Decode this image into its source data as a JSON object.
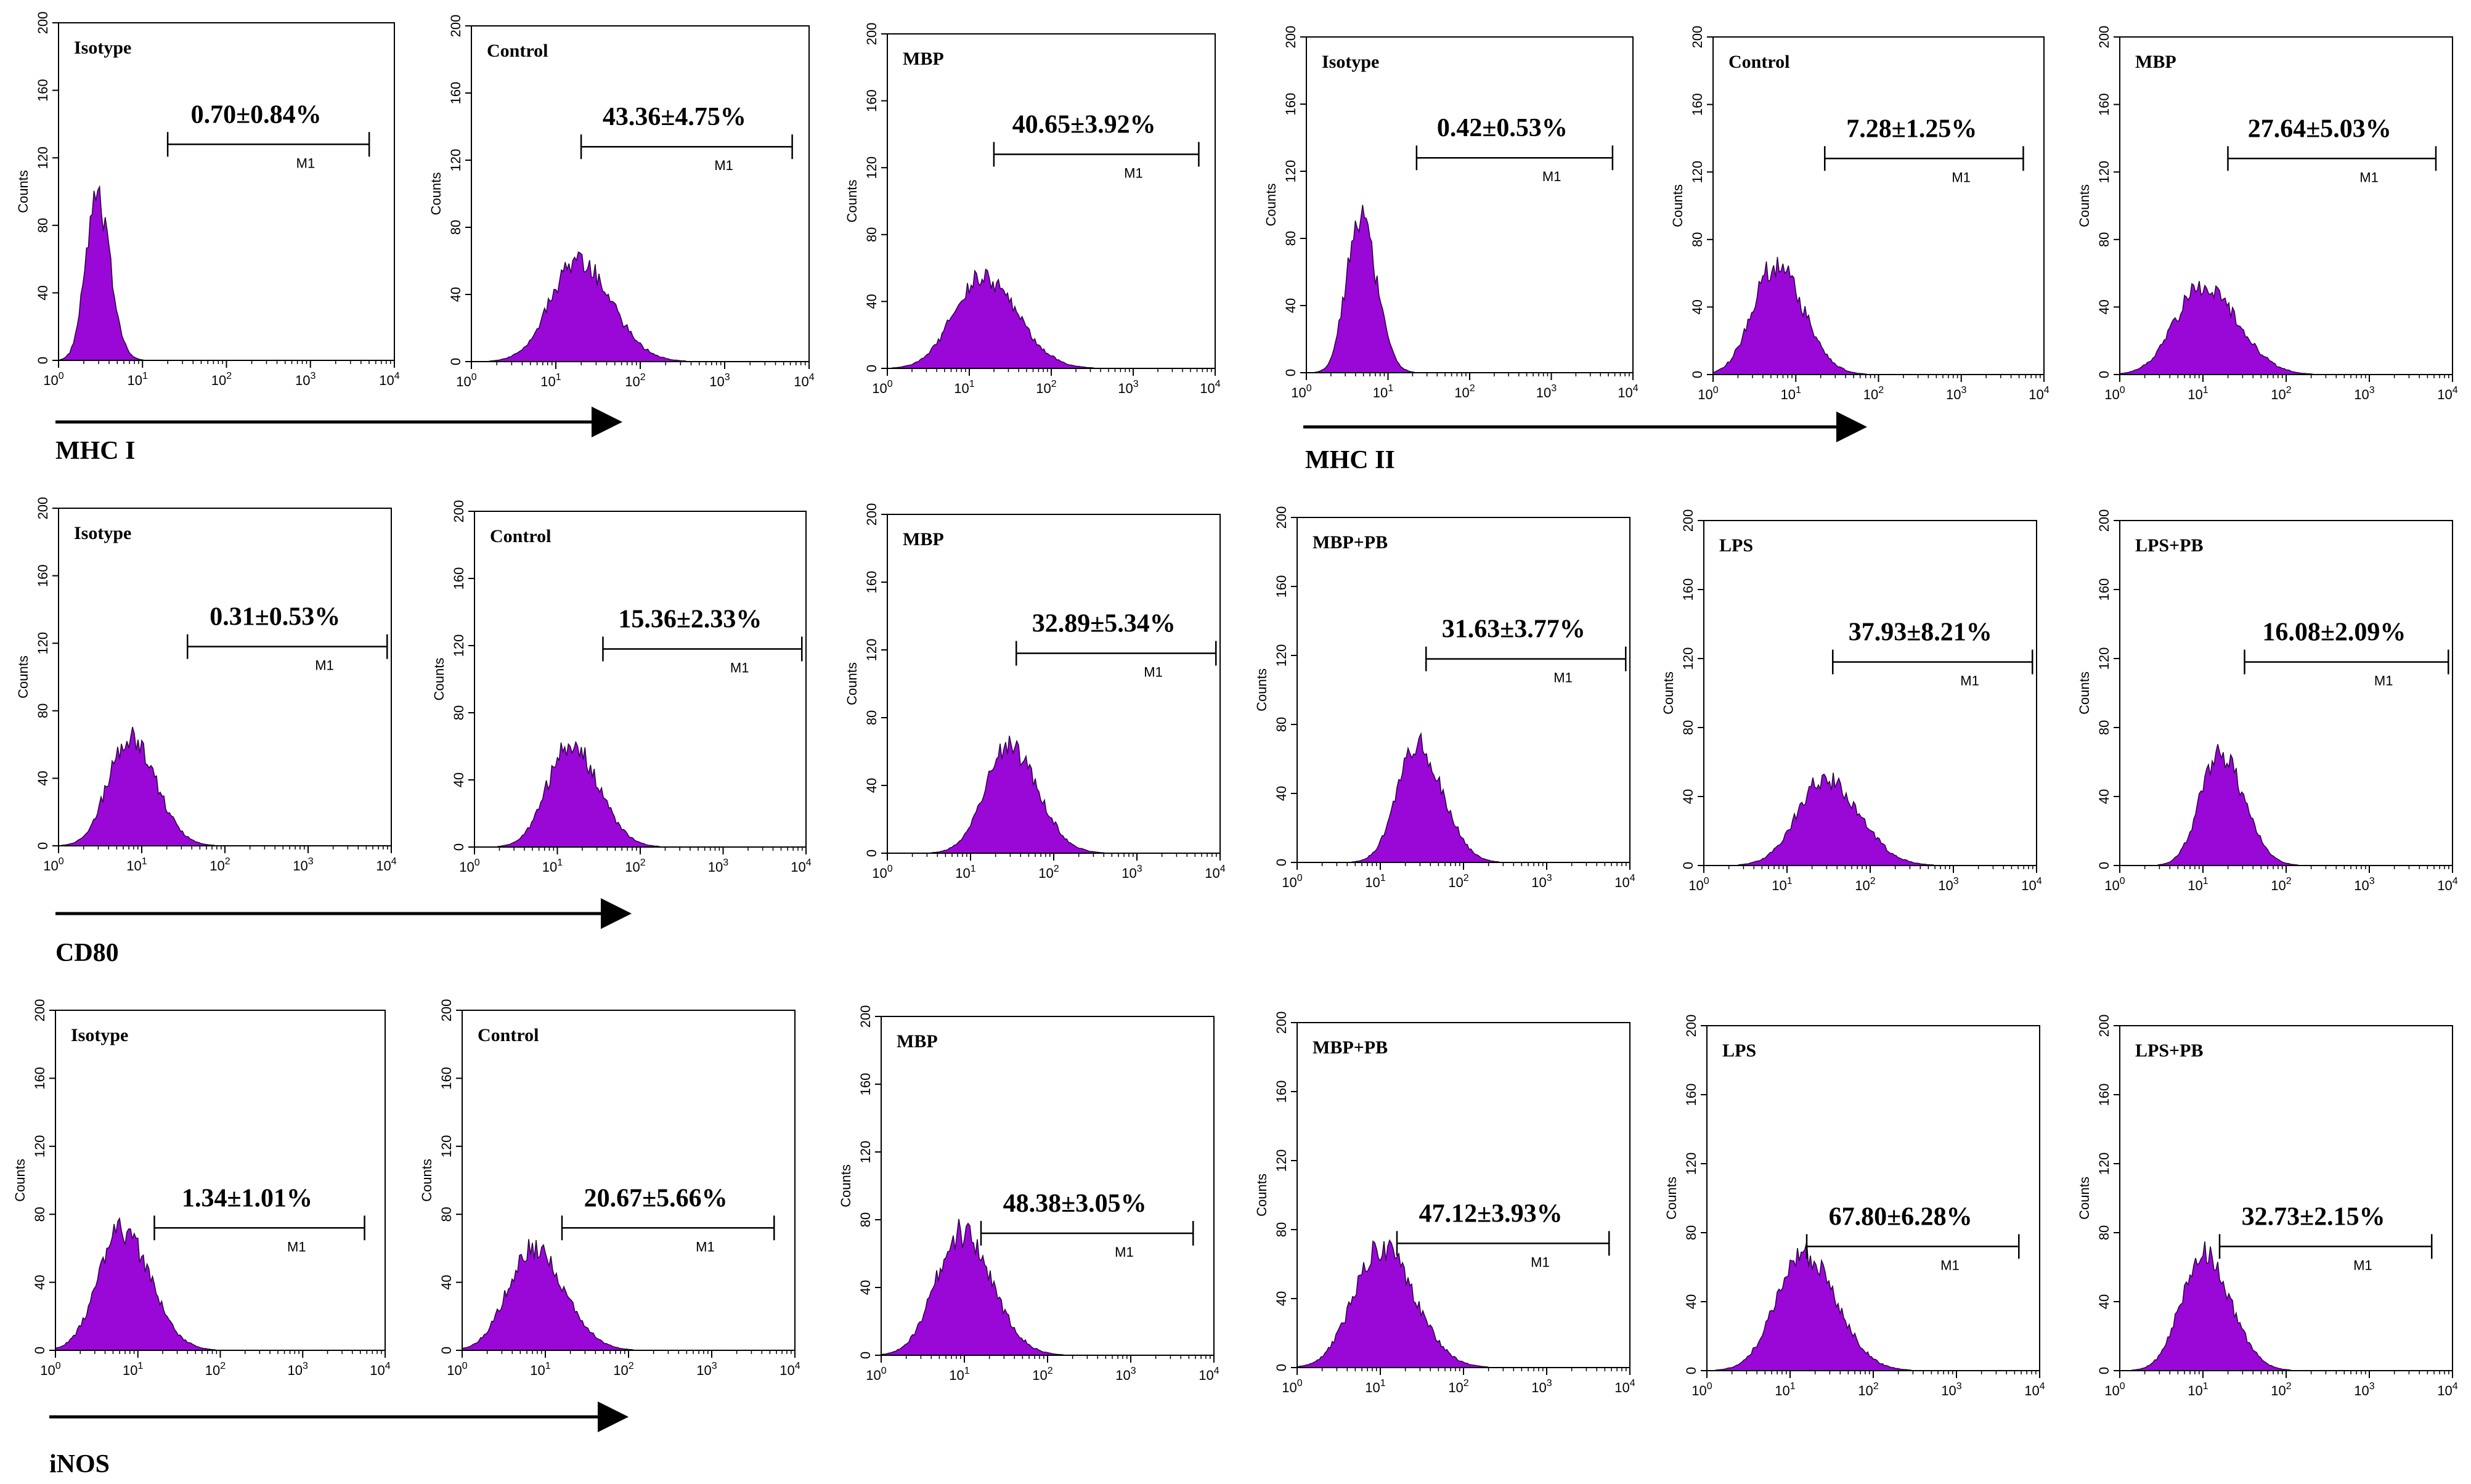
{
  "colors": {
    "histogram_fill": "#9a08d8",
    "histogram_edge": "#2a0040",
    "ink": "#000000"
  },
  "axis": {
    "ylabel": "Counts",
    "yticks": [
      "0",
      "40",
      "80",
      "120",
      "160",
      "200"
    ],
    "xtick_base": "10",
    "xtick_exponents": [
      "0",
      "1",
      "2",
      "3",
      "4"
    ],
    "gate_label": "M1"
  },
  "markers": [
    {
      "name": "MHC I"
    },
    {
      "name": "MHC II"
    },
    {
      "name": "CD80"
    },
    {
      "name": "iNOS"
    }
  ],
  "chart_data": [
    {
      "type": "histogram",
      "marker": "MHC I",
      "title": "Isotype",
      "value": "0.70±0.84%",
      "peak_log": 0.45,
      "peak_count": 95,
      "spread": 0.13,
      "gate": [
        1.3,
        3.7
      ],
      "ylim": [
        0,
        200
      ],
      "xlim_log": [
        0,
        4
      ]
    },
    {
      "type": "histogram",
      "marker": "MHC I",
      "title": "Control",
      "value": "43.36±4.75%",
      "peak_log": 1.25,
      "peak_count": 60,
      "spread": 0.32,
      "gate": [
        1.3,
        3.8
      ],
      "ylim": [
        0,
        200
      ],
      "xlim_log": [
        0,
        4
      ]
    },
    {
      "type": "histogram",
      "marker": "MHC I",
      "title": "MBP",
      "value": "40.65±3.92%",
      "peak_log": 1.15,
      "peak_count": 55,
      "spread": 0.34,
      "gate": [
        1.3,
        3.8
      ],
      "ylim": [
        0,
        200
      ],
      "xlim_log": [
        0,
        4
      ]
    },
    {
      "type": "histogram",
      "marker": "MHC II",
      "title": "Isotype",
      "value": "0.42±0.53%",
      "peak_log": 0.65,
      "peak_count": 95,
      "spread": 0.16,
      "gate": [
        1.35,
        3.75
      ],
      "ylim": [
        0,
        200
      ],
      "xlim_log": [
        0,
        4
      ]
    },
    {
      "type": "histogram",
      "marker": "MHC II",
      "title": "Control",
      "value": "7.28±1.25%",
      "peak_log": 0.75,
      "peak_count": 65,
      "spread": 0.27,
      "gate": [
        1.35,
        3.75
      ],
      "ylim": [
        0,
        200
      ],
      "xlim_log": [
        0,
        4
      ]
    },
    {
      "type": "histogram",
      "marker": "MHC II",
      "title": "MBP",
      "value": "27.64±5.03%",
      "peak_log": 1.0,
      "peak_count": 53,
      "spread": 0.33,
      "gate": [
        1.3,
        3.8
      ],
      "ylim": [
        0,
        200
      ],
      "xlim_log": [
        0,
        4
      ]
    },
    {
      "type": "histogram",
      "marker": "CD80",
      "title": "Isotype",
      "value": "0.31±0.53%",
      "peak_log": 0.85,
      "peak_count": 65,
      "spread": 0.25,
      "gate": [
        1.55,
        3.95
      ],
      "ylim": [
        0,
        200
      ],
      "xlim_log": [
        0,
        4
      ]
    },
    {
      "type": "histogram",
      "marker": "CD80",
      "title": "Control",
      "value": "15.36±2.33%",
      "peak_log": 1.15,
      "peak_count": 62,
      "spread": 0.27,
      "gate": [
        1.55,
        3.95
      ],
      "ylim": [
        0,
        200
      ],
      "xlim_log": [
        0,
        4
      ]
    },
    {
      "type": "histogram",
      "marker": "CD80",
      "title": "MBP",
      "value": "32.89±5.34%",
      "peak_log": 1.45,
      "peak_count": 63,
      "spread": 0.28,
      "gate": [
        1.55,
        3.95
      ],
      "ylim": [
        0,
        200
      ],
      "xlim_log": [
        0,
        4
      ]
    },
    {
      "type": "histogram",
      "marker": "CD80",
      "title": "MBP+PB",
      "value": "31.63±3.77%",
      "peak_log": 1.45,
      "peak_count": 68,
      "spread": 0.24,
      "gate": [
        1.55,
        3.95
      ],
      "ylim": [
        0,
        200
      ],
      "xlim_log": [
        0,
        4
      ]
    },
    {
      "type": "histogram",
      "marker": "CD80",
      "title": "LPS",
      "value": "37.93±8.21%",
      "peak_log": 1.45,
      "peak_count": 50,
      "spread": 0.33,
      "gate": [
        1.55,
        3.95
      ],
      "ylim": [
        0,
        200
      ],
      "xlim_log": [
        0,
        4
      ]
    },
    {
      "type": "histogram",
      "marker": "CD80",
      "title": "LPS+PB",
      "value": "16.08±2.09%",
      "peak_log": 1.2,
      "peak_count": 66,
      "spread": 0.23,
      "gate": [
        1.5,
        3.95
      ],
      "ylim": [
        0,
        200
      ],
      "xlim_log": [
        0,
        4
      ]
    },
    {
      "type": "histogram",
      "marker": "iNOS",
      "title": "Isotype",
      "value": "1.34±1.01%",
      "peak_log": 0.8,
      "peak_count": 70,
      "spread": 0.28,
      "gate": [
        1.2,
        3.75
      ],
      "ylim": [
        0,
        200
      ],
      "xlim_log": [
        0,
        4
      ]
    },
    {
      "type": "histogram",
      "marker": "iNOS",
      "title": "Control",
      "value": "20.67±5.66%",
      "peak_log": 0.85,
      "peak_count": 60,
      "spread": 0.3,
      "gate": [
        1.2,
        3.75
      ],
      "ylim": [
        0,
        200
      ],
      "xlim_log": [
        0,
        4
      ]
    },
    {
      "type": "histogram",
      "marker": "iNOS",
      "title": "MBP",
      "value": "48.38±3.05%",
      "peak_log": 0.95,
      "peak_count": 72,
      "spread": 0.3,
      "gate": [
        1.2,
        3.75
      ],
      "ylim": [
        0,
        200
      ],
      "xlim_log": [
        0,
        4
      ]
    },
    {
      "type": "histogram",
      "marker": "iNOS",
      "title": "MBP+PB",
      "value": "47.12±3.93%",
      "peak_log": 1.0,
      "peak_count": 70,
      "spread": 0.32,
      "gate": [
        1.2,
        3.75
      ],
      "ylim": [
        0,
        200
      ],
      "xlim_log": [
        0,
        4
      ]
    },
    {
      "type": "histogram",
      "marker": "iNOS",
      "title": "LPS",
      "value": "67.80±6.28%",
      "peak_log": 1.15,
      "peak_count": 68,
      "spread": 0.32,
      "gate": [
        1.2,
        3.75
      ],
      "ylim": [
        0,
        200
      ],
      "xlim_log": [
        0,
        4
      ]
    },
    {
      "type": "histogram",
      "marker": "iNOS",
      "title": "LPS+PB",
      "value": "32.73±2.15%",
      "peak_log": 1.0,
      "peak_count": 68,
      "spread": 0.26,
      "gate": [
        1.2,
        3.75
      ],
      "ylim": [
        0,
        200
      ],
      "xlim_log": [
        0,
        4
      ]
    }
  ]
}
